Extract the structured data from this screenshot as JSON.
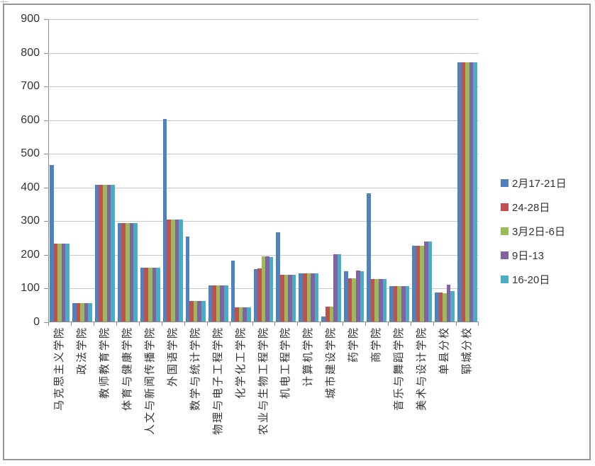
{
  "chart_data": {
    "type": "bar",
    "title": "",
    "xlabel": "",
    "ylabel": "",
    "ylim": [
      0,
      900
    ],
    "ytick_step": 100,
    "grid": true,
    "legend_position": "right",
    "categories": [
      "马克思主义学院",
      "政法学院",
      "教师教育学院",
      "体育与健康学院",
      "人文与新闻传播学院",
      "外国语学院",
      "数学与统计学院",
      "物理与电子工程学院",
      "化学化工学院",
      "农业与生物工程学院",
      "机电工程学院",
      "计算机学院",
      "城市建设学院",
      "药学院",
      "商学院",
      "音乐与舞蹈学院",
      "美术与设计学院",
      "单县分校",
      "郓城分校"
    ],
    "series": [
      {
        "name": "2月17-21日",
        "color": "#4F81BD",
        "values": [
          465,
          55,
          405,
          292,
          160,
          602,
          253,
          108,
          181,
          155,
          265,
          142,
          15,
          150,
          380,
          105,
          225,
          87,
          770
        ]
      },
      {
        "name": "24-28日",
        "color": "#C0504D",
        "values": [
          232,
          55,
          405,
          292,
          160,
          302,
          62,
          108,
          42,
          157,
          139,
          142,
          45,
          128,
          127,
          105,
          225,
          87,
          770
        ]
      },
      {
        "name": "3月2日-6日",
        "color": "#9BBB59",
        "values": [
          232,
          55,
          405,
          292,
          160,
          302,
          62,
          108,
          42,
          193,
          139,
          142,
          45,
          128,
          127,
          105,
          225,
          85,
          770
        ]
      },
      {
        "name": "9日-13",
        "color": "#8064A2",
        "values": [
          232,
          55,
          405,
          292,
          160,
          302,
          62,
          108,
          42,
          193,
          139,
          142,
          200,
          151,
          127,
          105,
          237,
          110,
          770
        ]
      },
      {
        "name": "16-20日",
        "color": "#4BACC6",
        "values": [
          232,
          55,
          405,
          292,
          160,
          302,
          62,
          108,
          42,
          192,
          139,
          142,
          200,
          150,
          127,
          105,
          237,
          90,
          770
        ]
      }
    ]
  },
  "axis": {
    "yticks": [
      "900",
      "800",
      "700",
      "600",
      "500",
      "400",
      "300",
      "200",
      "100",
      "0"
    ]
  }
}
